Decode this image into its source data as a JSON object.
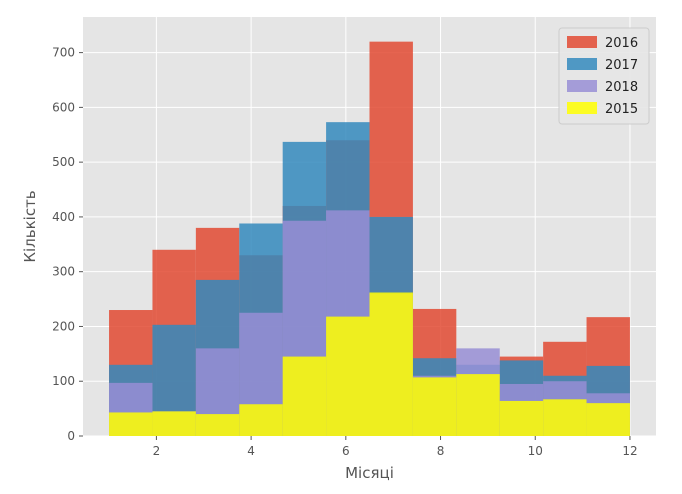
{
  "chart_data": {
    "type": "histogram",
    "xlabel": "Місяці",
    "ylabel": "Кількість",
    "xlim": [
      0.45,
      12.55
    ],
    "ylim": [
      0,
      765
    ],
    "xticks": [
      2,
      4,
      6,
      8,
      10,
      12
    ],
    "yticks": [
      0,
      100,
      200,
      300,
      400,
      500,
      600,
      700
    ],
    "grid": true,
    "legend_position": "top-right",
    "bin_edges": [
      1,
      1.9167,
      2.8333,
      3.75,
      4.6667,
      5.5833,
      6.5,
      7.4167,
      8.3333,
      9.25,
      10.1667,
      11.0833,
      12
    ],
    "series": [
      {
        "name": "2016",
        "color": "#E24A33",
        "values": [
          230,
          340,
          380,
          330,
          420,
          540,
          720,
          232,
          105,
          145,
          172,
          217
        ]
      },
      {
        "name": "2017",
        "color": "#348ABD",
        "values": [
          130,
          203,
          285,
          388,
          537,
          573,
          400,
          142,
          130,
          138,
          110,
          128
        ]
      },
      {
        "name": "2018",
        "color": "#988ED5",
        "values": [
          97,
          45,
          160,
          225,
          393,
          412,
          260,
          110,
          160,
          95,
          100,
          78
        ]
      },
      {
        "name": "2015",
        "color": "#FFFF00",
        "values": [
          43,
          45,
          40,
          58,
          145,
          218,
          262,
          107,
          113,
          64,
          67,
          60
        ]
      }
    ]
  }
}
